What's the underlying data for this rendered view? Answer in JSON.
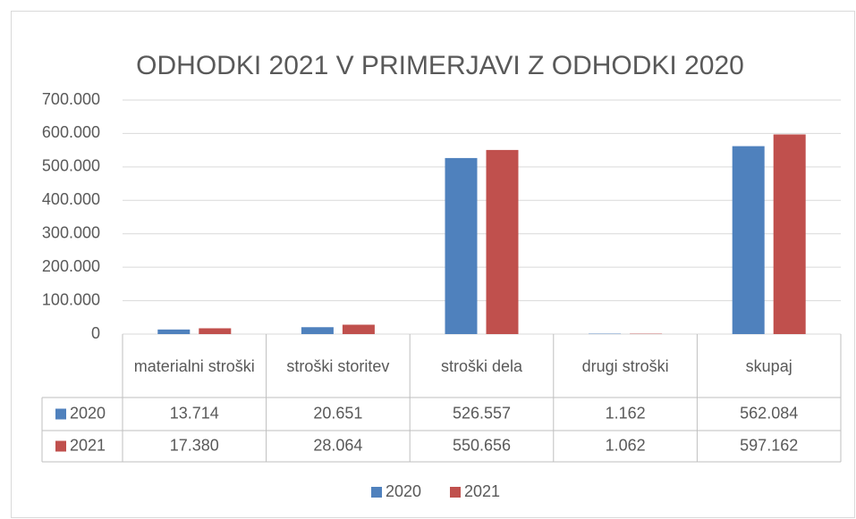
{
  "chart_data": {
    "type": "bar",
    "title": "ODHODKI 2021 V PRIMERJAVI Z ODHODKI 2020",
    "categories": [
      "materialni stroški",
      "stroški storitev",
      "stroški dela",
      "drugi stroški",
      "skupaj"
    ],
    "series": [
      {
        "name": "2020",
        "color": "#4f81bd",
        "values": [
          13714,
          20651,
          526557,
          1162,
          562084
        ],
        "value_labels": [
          "13.714",
          "20.651",
          "526.557",
          "1.162",
          "562.084"
        ]
      },
      {
        "name": "2021",
        "color": "#c0504d",
        "values": [
          17380,
          28064,
          550656,
          1062,
          597162
        ],
        "value_labels": [
          "17.380",
          "28.064",
          "550.656",
          "1.062",
          "597.162"
        ]
      }
    ],
    "ylim": [
      0,
      700000
    ],
    "yticks": [
      0,
      {
        "value": 100000,
        "label": "100.000"
      },
      {
        "value": 200000,
        "label": "200.000"
      },
      {
        "value": 300000,
        "label": "300.000"
      },
      {
        "value": 400000,
        "label": "400.000"
      },
      {
        "value": 500000,
        "label": "500.000"
      },
      {
        "value": 600000,
        "label": "600.000"
      },
      {
        "value": 700000,
        "label": "700.000"
      }
    ],
    "grid": true,
    "legend": "bottom"
  }
}
